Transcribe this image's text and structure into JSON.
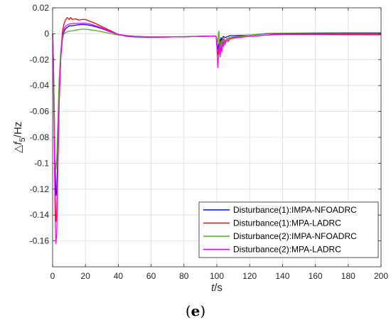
{
  "caption": {
    "open": "(",
    "letter": "e",
    "close": ")"
  },
  "chart_data": {
    "type": "line",
    "xlabel": {
      "var": "t",
      "unit": "/s"
    },
    "ylabel": {
      "delta": "△",
      "var": "f",
      "sub": "5",
      "unit": "/Hz"
    },
    "xlim": [
      0,
      200
    ],
    "ylim": [
      -0.18,
      0.02
    ],
    "xticks": [
      0,
      20,
      40,
      60,
      80,
      100,
      120,
      140,
      160,
      180,
      200
    ],
    "yticks": [
      0.02,
      0,
      -0.02,
      -0.04,
      -0.06,
      -0.08,
      -0.1,
      -0.12,
      -0.14,
      -0.16
    ],
    "ytick_labels": [
      "0.02",
      "0",
      "-0.02",
      "-0.04",
      "-0.06",
      "-0.08",
      "-0.1",
      "-0.12",
      "-0.14",
      "-0.16"
    ],
    "grid": true,
    "legend_position": "bottom-right",
    "series": [
      {
        "name": "Disturbance(1):IMPA-NFOADRC",
        "color": "#0000ff",
        "points": [
          [
            0,
            0
          ],
          [
            0.5,
            -0.02
          ],
          [
            1,
            -0.06
          ],
          [
            1.5,
            -0.1
          ],
          [
            2,
            -0.125
          ],
          [
            2.5,
            -0.122
          ],
          [
            3,
            -0.1
          ],
          [
            4,
            -0.05
          ],
          [
            5,
            -0.018
          ],
          [
            6,
            -0.004
          ],
          [
            7,
            0.002
          ],
          [
            8,
            0.004
          ],
          [
            10,
            0.006
          ],
          [
            12,
            0.0062
          ],
          [
            15,
            0.0068
          ],
          [
            18,
            0.0072
          ],
          [
            20,
            0.007
          ],
          [
            23,
            0.0065
          ],
          [
            26,
            0.0055
          ],
          [
            30,
            0.004
          ],
          [
            35,
            0.0015
          ],
          [
            40,
            -0.0005
          ],
          [
            45,
            -0.0015
          ],
          [
            50,
            -0.002
          ],
          [
            60,
            -0.0025
          ],
          [
            70,
            -0.0025
          ],
          [
            80,
            -0.0023
          ],
          [
            90,
            -0.002
          ],
          [
            99.5,
            -0.0018
          ],
          [
            100,
            -0.005
          ],
          [
            100.6,
            -0.012
          ],
          [
            101,
            -0.01
          ],
          [
            101.6,
            -0.004
          ],
          [
            102,
            -0.007
          ],
          [
            102.6,
            -0.003
          ],
          [
            103,
            -0.005
          ],
          [
            104,
            -0.002
          ],
          [
            105,
            -0.003
          ],
          [
            106,
            -0.0025
          ],
          [
            108,
            -0.0015
          ],
          [
            110,
            -0.0015
          ],
          [
            120,
            -0.001
          ],
          [
            130,
            0
          ],
          [
            140,
            0.0002
          ],
          [
            160,
            0.0003
          ],
          [
            180,
            0.0002
          ],
          [
            200,
            0.0002
          ]
        ]
      },
      {
        "name": "Disturbance(1):MPA-LADRC",
        "color": "#ff0000",
        "points": [
          [
            0,
            0
          ],
          [
            0.5,
            -0.025
          ],
          [
            1,
            -0.075
          ],
          [
            1.5,
            -0.12
          ],
          [
            2,
            -0.145
          ],
          [
            2.5,
            -0.14
          ],
          [
            3,
            -0.11
          ],
          [
            4,
            -0.05
          ],
          [
            5,
            -0.015
          ],
          [
            6,
            0.002
          ],
          [
            7,
            0.008
          ],
          [
            8,
            0.011
          ],
          [
            9,
            0.0125
          ],
          [
            10,
            0.011
          ],
          [
            11,
            0.0125
          ],
          [
            12,
            0.011
          ],
          [
            14,
            0.0115
          ],
          [
            16,
            0.0105
          ],
          [
            18,
            0.011
          ],
          [
            20,
            0.011
          ],
          [
            23,
            0.0095
          ],
          [
            26,
            0.008
          ],
          [
            30,
            0.0055
          ],
          [
            35,
            0.0025
          ],
          [
            40,
            -0.0005
          ],
          [
            45,
            -0.002
          ],
          [
            50,
            -0.0025
          ],
          [
            60,
            -0.0028
          ],
          [
            70,
            -0.0025
          ],
          [
            80,
            -0.0023
          ],
          [
            90,
            -0.002
          ],
          [
            99.5,
            -0.0018
          ],
          [
            100,
            -0.007
          ],
          [
            100.6,
            -0.016
          ],
          [
            101,
            -0.014
          ],
          [
            101.6,
            -0.006
          ],
          [
            102,
            -0.011
          ],
          [
            102.6,
            -0.005
          ],
          [
            103,
            -0.008
          ],
          [
            104,
            -0.004
          ],
          [
            105,
            -0.006
          ],
          [
            106,
            -0.004
          ],
          [
            108,
            -0.003
          ],
          [
            110,
            -0.003
          ],
          [
            120,
            -0.002
          ],
          [
            130,
            -0.001
          ],
          [
            140,
            -0.0005
          ],
          [
            160,
            -0.0005
          ],
          [
            180,
            -0.0007
          ],
          [
            200,
            -0.0008
          ]
        ]
      },
      {
        "name": "Disturbance(2):IMPA-NFOADRC",
        "color": "#4db31a",
        "points": [
          [
            0,
            0
          ],
          [
            0.5,
            -0.02
          ],
          [
            1,
            -0.06
          ],
          [
            1.5,
            -0.095
          ],
          [
            2,
            -0.105
          ],
          [
            2.5,
            -0.098
          ],
          [
            3,
            -0.075
          ],
          [
            4,
            -0.035
          ],
          [
            5,
            -0.012
          ],
          [
            6,
            -0.003
          ],
          [
            7,
            0
          ],
          [
            8,
            0.001
          ],
          [
            10,
            0.002
          ],
          [
            12,
            0.0022
          ],
          [
            15,
            0.003
          ],
          [
            18,
            0.0035
          ],
          [
            20,
            0.0035
          ],
          [
            23,
            0.003
          ],
          [
            26,
            0.0025
          ],
          [
            30,
            0.0015
          ],
          [
            35,
            0.0002
          ],
          [
            40,
            -0.001
          ],
          [
            45,
            -0.0018
          ],
          [
            50,
            -0.0022
          ],
          [
            60,
            -0.0025
          ],
          [
            70,
            -0.0024
          ],
          [
            80,
            -0.0022
          ],
          [
            90,
            -0.002
          ],
          [
            99.5,
            -0.0018
          ],
          [
            100,
            -0.004
          ],
          [
            100.6,
            -0.006
          ],
          [
            101,
            0.001
          ],
          [
            101.3,
            0.002
          ],
          [
            101.6,
            -0.01
          ],
          [
            102,
            -0.014
          ],
          [
            102.6,
            -0.006
          ],
          [
            103,
            -0.012
          ],
          [
            103.6,
            -0.004
          ],
          [
            104,
            -0.009
          ],
          [
            104.6,
            -0.004
          ],
          [
            105,
            -0.007
          ],
          [
            106,
            -0.004
          ],
          [
            107,
            -0.005
          ],
          [
            108,
            -0.003
          ],
          [
            110,
            -0.0025
          ],
          [
            120,
            -0.001
          ],
          [
            130,
            0.0002
          ],
          [
            140,
            0.0005
          ],
          [
            160,
            0.0007
          ],
          [
            180,
            0.0008
          ],
          [
            200,
            0.0008
          ]
        ]
      },
      {
        "name": "Disturbance(2):MPA-LADRC",
        "color": "#ff00ff",
        "points": [
          [
            0,
            0
          ],
          [
            0.5,
            -0.03
          ],
          [
            1,
            -0.09
          ],
          [
            1.5,
            -0.14
          ],
          [
            2,
            -0.162
          ],
          [
            2.5,
            -0.155
          ],
          [
            3,
            -0.12
          ],
          [
            4,
            -0.055
          ],
          [
            5,
            -0.018
          ],
          [
            6,
            -0.002
          ],
          [
            7,
            0.004
          ],
          [
            8,
            0.006
          ],
          [
            10,
            0.0075
          ],
          [
            12,
            0.0078
          ],
          [
            15,
            0.008
          ],
          [
            18,
            0.0082
          ],
          [
            20,
            0.0082
          ],
          [
            23,
            0.0075
          ],
          [
            26,
            0.0062
          ],
          [
            30,
            0.0045
          ],
          [
            35,
            0.0018
          ],
          [
            40,
            -0.0005
          ],
          [
            45,
            -0.0018
          ],
          [
            50,
            -0.0023
          ],
          [
            60,
            -0.0026
          ],
          [
            70,
            -0.0025
          ],
          [
            80,
            -0.0023
          ],
          [
            90,
            -0.002
          ],
          [
            99.5,
            -0.0018
          ],
          [
            100,
            -0.01
          ],
          [
            100.6,
            -0.026
          ],
          [
            101,
            -0.018
          ],
          [
            101.6,
            -0.008
          ],
          [
            102,
            -0.018
          ],
          [
            102.6,
            -0.01
          ],
          [
            103,
            -0.014
          ],
          [
            103.6,
            -0.006
          ],
          [
            104,
            -0.01
          ],
          [
            104.6,
            -0.005
          ],
          [
            105,
            -0.008
          ],
          [
            106,
            -0.005
          ],
          [
            107,
            -0.006
          ],
          [
            108,
            -0.004
          ],
          [
            110,
            -0.0035
          ],
          [
            120,
            -0.002
          ],
          [
            130,
            -0.001
          ],
          [
            140,
            -0.0005
          ],
          [
            160,
            -0.0003
          ],
          [
            180,
            -0.0002
          ],
          [
            200,
            -0.0002
          ]
        ]
      }
    ]
  }
}
